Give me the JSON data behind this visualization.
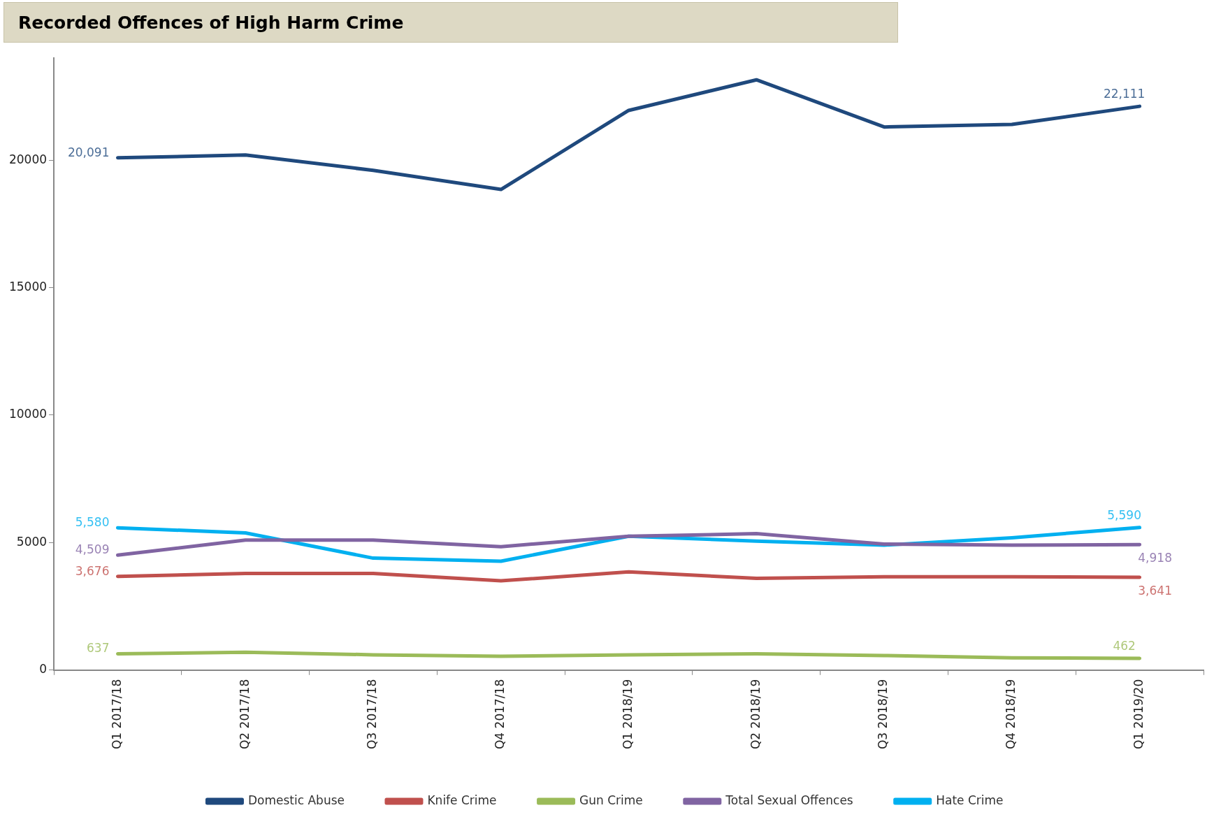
{
  "chart_data": {
    "type": "line",
    "title": "Recorded Offences of High Harm Crime",
    "categories": [
      "Q1 2017/18",
      "Q2 2017/18",
      "Q3 2017/18",
      "Q4 2017/18",
      "Q1 2018/19",
      "Q2 2018/19",
      "Q3 2018/19",
      "Q4 2018/19",
      "Q1 2019/20"
    ],
    "series": [
      {
        "name": "Domestic Abuse",
        "color": "#1f497d",
        "values": [
          20091,
          20200,
          19600,
          18850,
          21950,
          23150,
          21300,
          21400,
          22111
        ],
        "value_labels": [
          "20,091",
          null,
          null,
          null,
          null,
          null,
          null,
          null,
          "22,111"
        ]
      },
      {
        "name": "Knife Crime",
        "color": "#c0504d",
        "values": [
          3676,
          3790,
          3790,
          3500,
          3850,
          3600,
          3660,
          3660,
          3641
        ],
        "value_labels": [
          "3,676",
          null,
          null,
          null,
          null,
          null,
          null,
          null,
          "3,641"
        ]
      },
      {
        "name": "Gun Crime",
        "color": "#9bbb59",
        "values": [
          637,
          700,
          600,
          540,
          600,
          640,
          570,
          480,
          462
        ],
        "value_labels": [
          "637",
          null,
          null,
          null,
          null,
          null,
          null,
          null,
          "462"
        ]
      },
      {
        "name": "Total Sexual Offences",
        "color": "#8064a2",
        "values": [
          4509,
          5100,
          5100,
          4840,
          5250,
          5350,
          4940,
          4900,
          4918
        ],
        "value_labels": [
          "4,509",
          null,
          null,
          null,
          null,
          null,
          null,
          null,
          "4,918"
        ]
      },
      {
        "name": "Hate Crime",
        "color": "#00b0f0",
        "values": [
          5580,
          5380,
          4390,
          4270,
          5250,
          5060,
          4900,
          5190,
          5590
        ],
        "value_labels": [
          "5,580",
          null,
          null,
          null,
          null,
          null,
          null,
          null,
          "5,590"
        ]
      }
    ],
    "ylim": [
      0,
      24000
    ],
    "yticks": [
      0,
      5000,
      10000,
      15000,
      20000
    ],
    "grid": false,
    "legend": "bottom",
    "marker": "none",
    "line_style": "solid"
  }
}
